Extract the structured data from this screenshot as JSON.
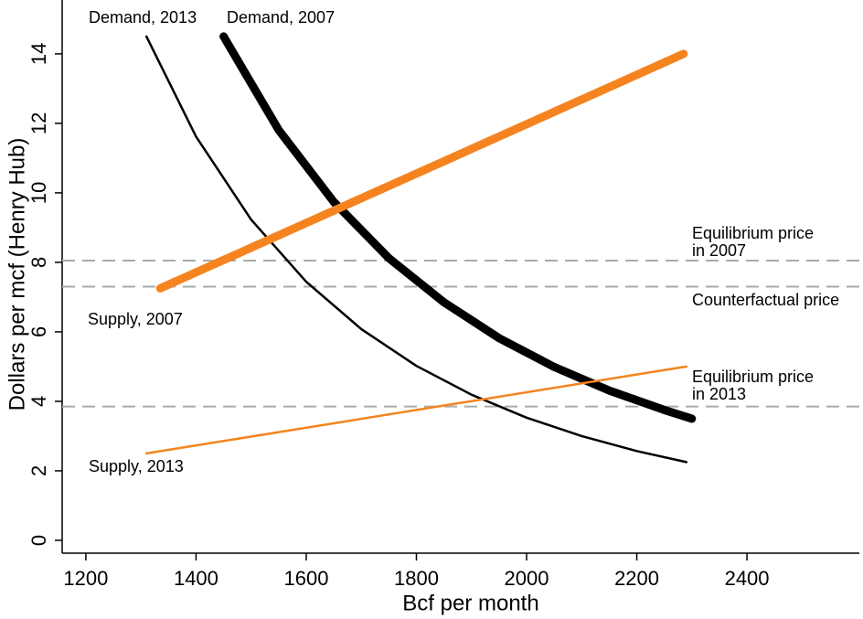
{
  "chart_data": {
    "type": "line",
    "xlabel": "Bcf per month",
    "ylabel": "Dollars per mcf (Henry Hub)",
    "xlim": [
      1157,
      2604
    ],
    "ylim": [
      -0.37,
      15.55
    ],
    "xticks": [
      1200,
      1400,
      1600,
      1800,
      2000,
      2200,
      2400
    ],
    "yticks": [
      0,
      2,
      4,
      6,
      8,
      10,
      12,
      14
    ],
    "series": [
      {
        "name": "Demand, 2013",
        "color": "#000000",
        "width": 2.5,
        "x": [
          1310,
          1400,
          1500,
          1600,
          1700,
          1800,
          1900,
          2000,
          2100,
          2200,
          2290
        ],
        "values": [
          14.5,
          11.62,
          9.23,
          7.44,
          6.08,
          5.02,
          4.19,
          3.53,
          3.0,
          2.57,
          2.25
        ]
      },
      {
        "name": "Demand, 2007",
        "color": "#000000",
        "width": 9,
        "x": [
          1450,
          1550,
          1650,
          1750,
          1850,
          1950,
          2050,
          2150,
          2250,
          2300
        ],
        "values": [
          14.5,
          11.81,
          9.74,
          8.12,
          6.85,
          5.82,
          4.99,
          4.31,
          3.75,
          3.5
        ]
      },
      {
        "name": "Supply, 2007",
        "color": "#f5831f",
        "width": 9,
        "x": [
          1335,
          2285
        ],
        "values": [
          7.25,
          14.0
        ]
      },
      {
        "name": "Supply, 2013",
        "color": "#f5831f",
        "width": 2.5,
        "x": [
          1310,
          2290
        ],
        "values": [
          2.5,
          5.0
        ]
      }
    ],
    "hlines": [
      8.05,
      7.3,
      3.85
    ],
    "hline_color": "#aaaaaa",
    "annotations": [
      [
        "Equilibrium price",
        "in 2007"
      ],
      [
        "Counterfactual price"
      ],
      [
        "Equilibrium price",
        "in 2013"
      ]
    ]
  }
}
